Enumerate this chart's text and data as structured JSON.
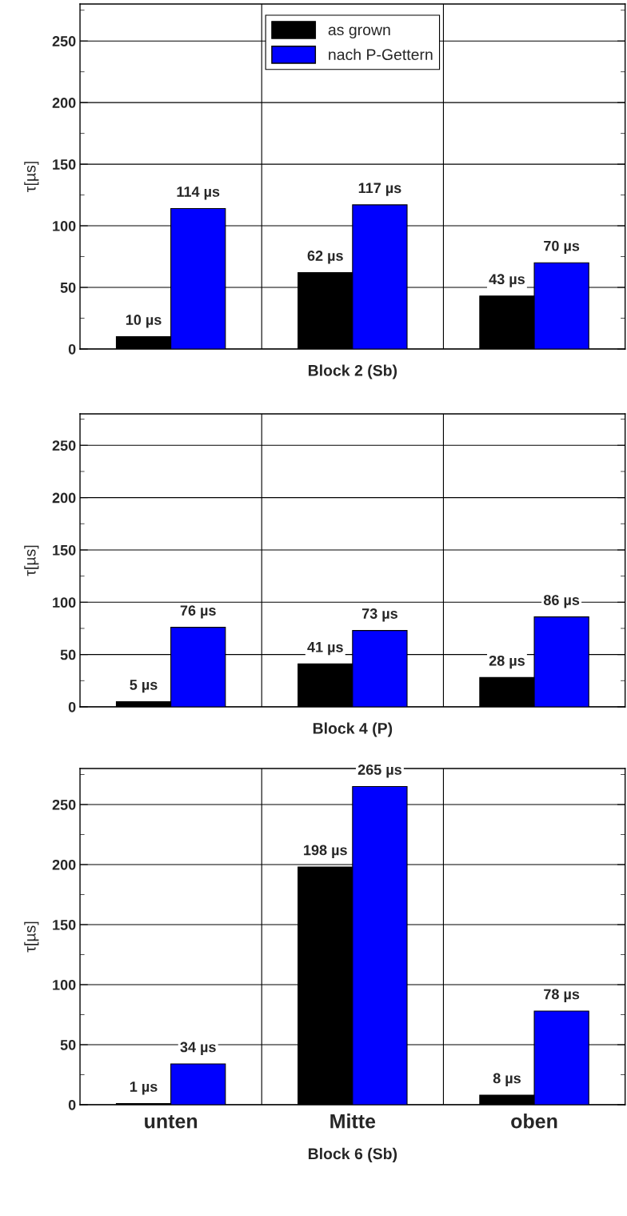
{
  "chart_data": [
    {
      "type": "bar",
      "xlabel": "Block 2 (Sb)",
      "ylabel": "τ[µs]",
      "categories": [
        null,
        null,
        null
      ],
      "tick_labels": "y",
      "ylim": [
        0,
        280
      ],
      "yticks": [
        0,
        50,
        100,
        150,
        200,
        250
      ],
      "grid": true,
      "legend": "top",
      "series": [
        {
          "name": "as grown",
          "color": "#000000",
          "values": [
            10,
            62,
            43
          ],
          "value_labels": [
            "10 µs",
            "62 µs",
            "43 µs"
          ]
        },
        {
          "name": "nach P-Gettern",
          "color": "#0000ff",
          "values": [
            114,
            117,
            70
          ],
          "value_labels": [
            "114 µs",
            "117 µs",
            "70 µs"
          ]
        }
      ]
    },
    {
      "type": "bar",
      "xlabel": "Block 4 (P)",
      "ylabel": "τ[µs]",
      "categories": [
        null,
        null,
        null
      ],
      "tick_labels": "y",
      "ylim": [
        0,
        280
      ],
      "yticks": [
        0,
        50,
        100,
        150,
        200,
        250
      ],
      "grid": true,
      "series": [
        {
          "color": "#000000",
          "values": [
            5,
            41,
            28
          ],
          "value_labels": [
            "5 µs",
            "41 µs",
            "28 µs"
          ]
        },
        {
          "color": "#0000ff",
          "values": [
            76,
            73,
            86
          ],
          "value_labels": [
            "76 µs",
            "73 µs",
            "86 µs"
          ]
        }
      ]
    },
    {
      "type": "bar",
      "xlabel": "Block 6 (Sb)",
      "ylabel": "τ[µs]",
      "categories": [
        "unten",
        "Mitte",
        "oben"
      ],
      "ylim": [
        0,
        280
      ],
      "yticks": [
        0,
        50,
        100,
        150,
        200,
        250
      ],
      "grid": true,
      "series": [
        {
          "color": "#000000",
          "values": [
            1,
            198,
            8
          ],
          "value_labels": [
            "1 µs",
            "198 µs",
            "8 µs"
          ]
        },
        {
          "color": "#0000ff",
          "values": [
            34,
            265,
            78
          ],
          "value_labels": [
            "34 µs",
            "265 µs",
            "78 µs"
          ]
        }
      ]
    }
  ]
}
